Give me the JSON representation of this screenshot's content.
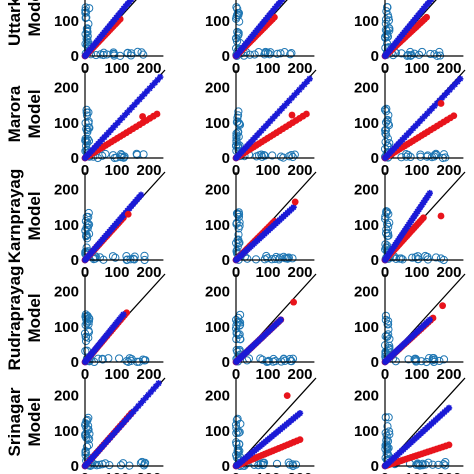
{
  "figure": {
    "row_labels": [
      "Uttarkashi Model",
      "Marora Model",
      "Karnprayag Model",
      "Rudraprayag Model",
      "Srinagar Model"
    ],
    "row_label_lines": [
      [
        "Uttarkas",
        "Model"
      ],
      [
        "Marora",
        "Model"
      ],
      [
        "Karnprayag",
        "Model"
      ],
      [
        "Rudraprayag",
        "Model"
      ],
      [
        "Srinagar",
        "Model"
      ]
    ],
    "colors": {
      "observed": "#1f77b4",
      "model_a": "#e8141c",
      "model_b": "#1a1ad6",
      "reference": "#000000"
    },
    "marker_names": {
      "observed": "open circle",
      "model_a": "filled circle",
      "model_b": "asterisk"
    }
  },
  "chart_data": {
    "type": "scatter",
    "layout": "5 rows x 3 columns of panels",
    "axes": {
      "xlim": [
        0,
        250
      ],
      "ylim": [
        0,
        250
      ],
      "xticks": [
        0,
        100,
        200
      ],
      "yticks": [
        0,
        100,
        200
      ],
      "xticklabels": [
        "0",
        "100",
        "200"
      ],
      "yticklabels": [
        "0",
        "100",
        "200"
      ]
    },
    "reference_line": "y = x",
    "panels": [
      {
        "row": 0,
        "col": 0,
        "blue_end": [
          175,
          195
        ],
        "red_end": [
          110,
          105
        ],
        "outliers": []
      },
      {
        "row": 0,
        "col": 1,
        "blue_end": [
          175,
          195
        ],
        "red_end": [
          120,
          110
        ],
        "outliers": []
      },
      {
        "row": 0,
        "col": 2,
        "blue_end": [
          175,
          195
        ],
        "red_end": [
          130,
          110
        ],
        "outliers": []
      },
      {
        "row": 1,
        "col": 0,
        "blue_end": [
          235,
          230
        ],
        "red_end": [
          225,
          125
        ],
        "outliers": [
          [
            180,
            118
          ]
        ]
      },
      {
        "row": 1,
        "col": 1,
        "blue_end": [
          230,
          225
        ],
        "red_end": [
          220,
          125
        ],
        "outliers": [
          [
            175,
            122
          ]
        ]
      },
      {
        "row": 1,
        "col": 2,
        "blue_end": [
          235,
          225
        ],
        "red_end": [
          215,
          120
        ],
        "outliers": [
          [
            175,
            155
          ]
        ]
      },
      {
        "row": 2,
        "col": 0,
        "blue_end": [
          175,
          185
        ],
        "red_end": [
          120,
          120
        ],
        "outliers": [
          [
            135,
            130
          ]
        ]
      },
      {
        "row": 2,
        "col": 1,
        "blue_end": [
          180,
          150
        ],
        "red_end": [
          120,
          110
        ],
        "outliers": [
          [
            185,
            165
          ]
        ]
      },
      {
        "row": 2,
        "col": 2,
        "blue_end": [
          140,
          190
        ],
        "red_end": [
          120,
          120
        ],
        "outliers": [
          [
            175,
            125
          ]
        ]
      },
      {
        "row": 3,
        "col": 0,
        "blue_end": [
          120,
          135
        ],
        "red_end": [
          130,
          140
        ],
        "outliers": []
      },
      {
        "row": 3,
        "col": 1,
        "blue_end": [
          140,
          120
        ],
        "red_end": [
          140,
          120
        ],
        "outliers": [
          [
            180,
            170
          ]
        ]
      },
      {
        "row": 3,
        "col": 2,
        "blue_end": [
          140,
          120
        ],
        "red_end": [
          150,
          125
        ],
        "outliers": [
          [
            180,
            160
          ]
        ]
      },
      {
        "row": 4,
        "col": 0,
        "blue_end": [
          230,
          235
        ],
        "red_end": [
          145,
          150
        ],
        "outliers": []
      },
      {
        "row": 4,
        "col": 1,
        "blue_end": [
          200,
          150
        ],
        "red_end": [
          200,
          75
        ],
        "outliers": [
          [
            160,
            200
          ]
        ]
      },
      {
        "row": 4,
        "col": 2,
        "blue_end": [
          200,
          165
        ],
        "red_end": [
          200,
          60
        ],
        "outliers": []
      }
    ],
    "observed_scatter": "dense vertical and horizontal clusters of open circles near both axes"
  }
}
